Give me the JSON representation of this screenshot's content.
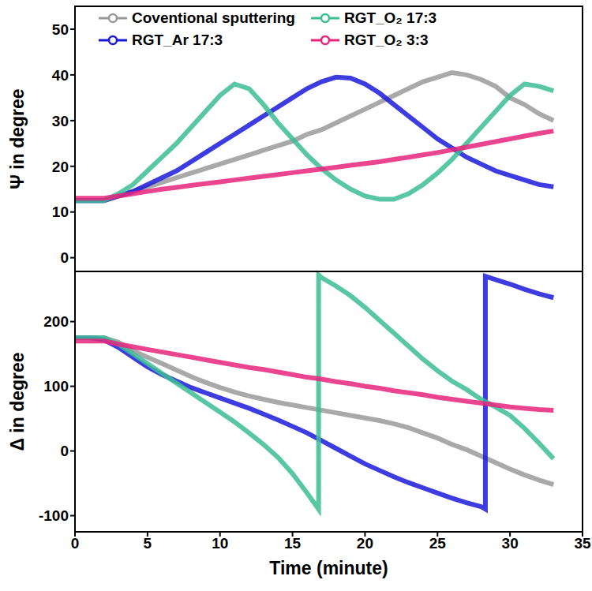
{
  "chart_data": [
    {
      "type": "line",
      "y_label": "Ψ in degree",
      "xlim": [
        0,
        35
      ],
      "xticks": [
        0,
        5,
        10,
        15,
        20,
        25,
        30,
        35
      ],
      "ylim": [
        -3,
        55
      ],
      "yticks": [
        0,
        10,
        20,
        30,
        40,
        50
      ],
      "tick_labels": "y",
      "legend": "upper left",
      "series": [
        {
          "name": "Coventional sputtering",
          "color": "#9a9a9a",
          "x": [
            0,
            1,
            2,
            3,
            4,
            5,
            6,
            7,
            8,
            9,
            10,
            11,
            12,
            13,
            14,
            15,
            16,
            17,
            18,
            19,
            20,
            21,
            22,
            23,
            24,
            25,
            26,
            27,
            28,
            29,
            30,
            31,
            32,
            33
          ],
          "values": [
            12.5,
            12.5,
            12.5,
            13.5,
            14.5,
            15.5,
            16.5,
            17.5,
            18.5,
            19.5,
            20.5,
            21.5,
            22.5,
            23.5,
            24.5,
            25.5,
            27,
            28,
            29.5,
            31,
            32.5,
            34,
            35.5,
            37,
            38.5,
            39.5,
            40.5,
            40,
            39,
            37.5,
            35,
            33.5,
            31.5,
            30
          ]
        },
        {
          "name": "RGT_Ar 17:3",
          "color": "#1a1adb",
          "x": [
            0,
            1,
            2,
            3,
            4,
            5,
            6,
            7,
            8,
            9,
            10,
            11,
            12,
            13,
            14,
            15,
            16,
            17,
            18,
            19,
            20,
            21,
            22,
            23,
            24,
            25,
            26,
            27,
            28,
            29,
            30,
            31,
            32,
            33
          ],
          "values": [
            12.5,
            12.5,
            12.5,
            13.5,
            14.5,
            16,
            17.5,
            19,
            21,
            23,
            25,
            27,
            29,
            31,
            33,
            35,
            37,
            38.5,
            39.5,
            39.3,
            38,
            36,
            33.5,
            31,
            28.5,
            26,
            24,
            22,
            20.5,
            19,
            18,
            17,
            16,
            15.5
          ]
        },
        {
          "name": "RGT_O₂ 17:3",
          "color": "#3dbd94",
          "x": [
            0,
            1,
            2,
            3,
            4,
            5,
            6,
            7,
            8,
            9,
            10,
            11,
            12,
            13,
            14,
            15,
            16,
            17,
            18,
            19,
            20,
            21,
            22,
            23,
            24,
            25,
            26,
            27,
            28,
            29,
            30,
            31,
            32,
            33
          ],
          "values": [
            12.5,
            12.5,
            12.5,
            14,
            16,
            19,
            22,
            25,
            28.5,
            32,
            35.5,
            38,
            37,
            33.5,
            29.5,
            26,
            22.5,
            19.5,
            17,
            15,
            13.5,
            12.8,
            12.8,
            14,
            16,
            18.5,
            21.5,
            25,
            28.5,
            32,
            35.5,
            38,
            37.5,
            36.5
          ]
        },
        {
          "name": "RGT_O₂ 3:3",
          "color": "#e8247c",
          "x": [
            0,
            1,
            2,
            3,
            4,
            5,
            6,
            7,
            8,
            9,
            10,
            11,
            12,
            13,
            14,
            15,
            16,
            17,
            18,
            19,
            20,
            21,
            22,
            23,
            24,
            25,
            26,
            27,
            28,
            29,
            30,
            31,
            32,
            33
          ],
          "values": [
            13,
            13,
            13,
            13.5,
            14,
            14.5,
            15,
            15.4,
            15.8,
            16.2,
            16.6,
            17,
            17.4,
            17.8,
            18.2,
            18.6,
            19,
            19.4,
            19.8,
            20.2,
            20.6,
            21,
            21.5,
            22,
            22.5,
            23,
            23.6,
            24.2,
            24.8,
            25.4,
            26,
            26.6,
            27.2,
            27.7
          ]
        }
      ]
    },
    {
      "type": "line",
      "x_label": "Time (minute)",
      "y_label": "Δ in degree",
      "xlim": [
        0,
        35
      ],
      "xticks": [
        0,
        5,
        10,
        15,
        20,
        25,
        30,
        35
      ],
      "ylim": [
        -125,
        280
      ],
      "yticks": [
        -100,
        0,
        100,
        200
      ],
      "series": [
        {
          "name": "Coventional sputtering",
          "color": "#9a9a9a",
          "x": [
            0,
            1,
            2,
            3,
            4,
            5,
            6,
            7,
            8,
            9,
            10,
            11,
            12,
            13,
            14,
            15,
            16,
            17,
            18,
            19,
            20,
            21,
            22,
            23,
            24,
            25,
            26,
            27,
            28,
            29,
            30,
            31,
            32,
            33
          ],
          "values": [
            175,
            175,
            175,
            168,
            155,
            145,
            135,
            125,
            115,
            106,
            98,
            91,
            85,
            80,
            75,
            71,
            67,
            63,
            59,
            55,
            51,
            47,
            42,
            36,
            28,
            20,
            10,
            2,
            -8,
            -18,
            -28,
            -37,
            -45,
            -52
          ]
        },
        {
          "name": "RGT_Ar 17:3",
          "color": "#1a1adb",
          "x": [
            0,
            1,
            2,
            3,
            4,
            5,
            6,
            7,
            8,
            9,
            10,
            11,
            12,
            13,
            14,
            15,
            16,
            17,
            18,
            19,
            20,
            21,
            22,
            23,
            24,
            25,
            26,
            27,
            28,
            28.3,
            28.3,
            29,
            30,
            31,
            32,
            33
          ],
          "values": [
            175,
            175,
            172,
            160,
            145,
            130,
            118,
            108,
            98,
            90,
            82,
            74,
            66,
            57,
            48,
            38,
            28,
            16,
            4,
            -8,
            -20,
            -30,
            -40,
            -49,
            -57,
            -65,
            -73,
            -80,
            -86,
            -90,
            270,
            265,
            258,
            250,
            243,
            237
          ]
        },
        {
          "name": "RGT_O₂ 17:3",
          "color": "#3dbd94",
          "x": [
            0,
            1,
            2,
            3,
            4,
            5,
            6,
            7,
            8,
            9,
            10,
            11,
            12,
            13,
            14,
            15,
            16,
            16.8,
            16.8,
            17,
            18,
            19,
            20,
            21,
            22,
            23,
            24,
            25,
            26,
            27,
            28,
            29,
            30,
            31,
            32,
            33
          ],
          "values": [
            175,
            175,
            175,
            165,
            150,
            135,
            120,
            105,
            90,
            75,
            60,
            45,
            28,
            10,
            -10,
            -35,
            -65,
            -90,
            272,
            268,
            255,
            240,
            222,
            202,
            182,
            162,
            142,
            124,
            108,
            95,
            80,
            68,
            55,
            35,
            12,
            -12
          ]
        },
        {
          "name": "RGT_O₂ 3:3",
          "color": "#e8247c",
          "x": [
            0,
            1,
            2,
            3,
            4,
            5,
            6,
            7,
            8,
            9,
            10,
            11,
            12,
            13,
            14,
            15,
            16,
            17,
            18,
            19,
            20,
            21,
            22,
            23,
            24,
            25,
            26,
            27,
            28,
            29,
            30,
            31,
            32,
            33
          ],
          "values": [
            170,
            170,
            170,
            165,
            161,
            157,
            153,
            149,
            145,
            141,
            137,
            133,
            129,
            126,
            122,
            118,
            114,
            111,
            107,
            104,
            100,
            97,
            93,
            90,
            87,
            83,
            80,
            77,
            74,
            71,
            68,
            66,
            64,
            63
          ]
        }
      ]
    }
  ]
}
